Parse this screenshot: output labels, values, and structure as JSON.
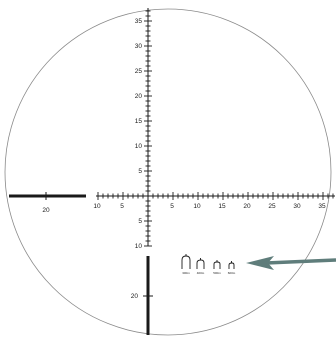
{
  "reticle": {
    "horizontal_labels": {
      "left": [
        "10",
        "5"
      ],
      "right": [
        "5",
        "10",
        "15",
        "20",
        "25",
        "30",
        "35"
      ],
      "outer_left": "20"
    },
    "vertical_labels": {
      "up": [
        "35",
        "30",
        "25",
        "20",
        "15",
        "10",
        "5"
      ],
      "down": [
        "5",
        "10"
      ],
      "outer_down": "20"
    },
    "rangefinder_labels": [
      "300m",
      "400m",
      "500m",
      "600m"
    ]
  },
  "colors": {
    "ring": "#8a8a8a",
    "ink": "#1a1a1a",
    "arrow": "#5f7d7b"
  },
  "icons": {
    "pointer": "arrow-left-icon"
  }
}
